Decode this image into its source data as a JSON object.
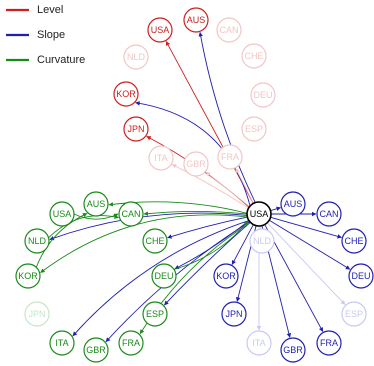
{
  "legend": [
    {
      "label": "Level",
      "color": "#cc1f1f"
    },
    {
      "label": "Slope",
      "color": "#1f1fb0"
    },
    {
      "label": "Curvature",
      "color": "#1a8a1a"
    }
  ],
  "colors": {
    "level": "#cc1f1f",
    "level_faded": "#f2c6c6",
    "slope": "#1f1fb0",
    "slope_faded": "#c9c9f0",
    "curvature": "#1a8a1a",
    "curvature_faded": "#c8e6c8",
    "hub": "#000000"
  },
  "hub": {
    "id": "hub",
    "label": "USA"
  },
  "nodes": [
    {
      "id": "L_USA",
      "label": "USA",
      "group": "level",
      "faded": false
    },
    {
      "id": "L_AUS",
      "label": "AUS",
      "group": "level",
      "faded": false
    },
    {
      "id": "L_CAN",
      "label": "CAN",
      "group": "level",
      "faded": true
    },
    {
      "id": "L_NLD",
      "label": "NLD",
      "group": "level",
      "faded": true
    },
    {
      "id": "L_CHE",
      "label": "CHE",
      "group": "level",
      "faded": true
    },
    {
      "id": "L_DEU",
      "label": "DEU",
      "group": "level",
      "faded": true
    },
    {
      "id": "L_KOR",
      "label": "KOR",
      "group": "level",
      "faded": false
    },
    {
      "id": "L_ESP",
      "label": "ESP",
      "group": "level",
      "faded": true
    },
    {
      "id": "L_JPN",
      "label": "JPN",
      "group": "level",
      "faded": false
    },
    {
      "id": "L_ITA",
      "label": "ITA",
      "group": "level",
      "faded": true
    },
    {
      "id": "L_GBR",
      "label": "GBR",
      "group": "level",
      "faded": true
    },
    {
      "id": "L_FRA",
      "label": "FRA",
      "group": "level",
      "faded": true
    },
    {
      "id": "S_AUS",
      "label": "AUS",
      "group": "slope",
      "faded": false
    },
    {
      "id": "S_CAN",
      "label": "CAN",
      "group": "slope",
      "faded": false
    },
    {
      "id": "S_CHE",
      "label": "CHE",
      "group": "slope",
      "faded": false
    },
    {
      "id": "S_NLD",
      "label": "NLD",
      "group": "slope",
      "faded": true
    },
    {
      "id": "S_DEU",
      "label": "DEU",
      "group": "slope",
      "faded": false
    },
    {
      "id": "S_KOR",
      "label": "KOR",
      "group": "slope",
      "faded": false
    },
    {
      "id": "S_ESP",
      "label": "ESP",
      "group": "slope",
      "faded": true
    },
    {
      "id": "S_JPN",
      "label": "JPN",
      "group": "slope",
      "faded": false
    },
    {
      "id": "S_ITA",
      "label": "ITA",
      "group": "slope",
      "faded": true
    },
    {
      "id": "S_GBR",
      "label": "GBR",
      "group": "slope",
      "faded": false
    },
    {
      "id": "S_FRA",
      "label": "FRA",
      "group": "slope",
      "faded": false
    },
    {
      "id": "C_AUS",
      "label": "AUS",
      "group": "curvature",
      "faded": false
    },
    {
      "id": "C_USA",
      "label": "USA",
      "group": "curvature",
      "faded": false
    },
    {
      "id": "C_CAN",
      "label": "CAN",
      "group": "curvature",
      "faded": false
    },
    {
      "id": "C_NLD",
      "label": "NLD",
      "group": "curvature",
      "faded": false
    },
    {
      "id": "C_CHE",
      "label": "CHE",
      "group": "curvature",
      "faded": false
    },
    {
      "id": "C_KOR",
      "label": "KOR",
      "group": "curvature",
      "faded": false
    },
    {
      "id": "C_DEU",
      "label": "DEU",
      "group": "curvature",
      "faded": false
    },
    {
      "id": "C_JPN",
      "label": "JPN",
      "group": "curvature",
      "faded": true
    },
    {
      "id": "C_ESP",
      "label": "ESP",
      "group": "curvature",
      "faded": false
    },
    {
      "id": "C_ITA",
      "label": "ITA",
      "group": "curvature",
      "faded": false
    },
    {
      "id": "C_GBR",
      "label": "GBR",
      "group": "curvature",
      "faded": false
    },
    {
      "id": "C_FRA",
      "label": "FRA",
      "group": "curvature",
      "faded": false
    }
  ],
  "edges": [
    {
      "from": "hub",
      "to": "L_USA",
      "type": "level",
      "faded": false
    },
    {
      "from": "hub",
      "to": "L_AUS",
      "type": "slope",
      "faded": false
    },
    {
      "from": "hub",
      "to": "L_KOR",
      "type": "slope",
      "faded": false
    },
    {
      "from": "hub",
      "to": "L_JPN",
      "type": "level",
      "faded": false
    },
    {
      "from": "hub",
      "to": "L_ITA",
      "type": "level",
      "faded": true
    },
    {
      "from": "hub",
      "to": "L_GBR",
      "type": "level",
      "faded": true
    },
    {
      "from": "hub",
      "to": "L_FRA",
      "type": "level",
      "faded": true
    },
    {
      "from": "hub",
      "to": "S_AUS",
      "type": "slope",
      "faded": false
    },
    {
      "from": "hub",
      "to": "S_CAN",
      "type": "slope",
      "faded": false
    },
    {
      "from": "hub",
      "to": "S_CHE",
      "type": "slope",
      "faded": false
    },
    {
      "from": "hub",
      "to": "S_DEU",
      "type": "slope",
      "faded": false
    },
    {
      "from": "hub",
      "to": "S_KOR",
      "type": "slope",
      "faded": false
    },
    {
      "from": "hub",
      "to": "S_JPN",
      "type": "slope",
      "faded": false
    },
    {
      "from": "hub",
      "to": "S_GBR",
      "type": "slope",
      "faded": false
    },
    {
      "from": "hub",
      "to": "S_FRA",
      "type": "slope",
      "faded": false
    },
    {
      "from": "hub",
      "to": "S_ITA",
      "type": "slope",
      "faded": true
    },
    {
      "from": "hub",
      "to": "S_ESP",
      "type": "slope",
      "faded": true
    },
    {
      "from": "hub",
      "to": "S_NLD",
      "type": "slope",
      "faded": true
    },
    {
      "from": "hub",
      "to": "C_CAN",
      "type": "curvature",
      "faded": false
    },
    {
      "from": "hub",
      "to": "C_AUS",
      "type": "curvature",
      "faded": false
    },
    {
      "from": "hub",
      "to": "C_CHE",
      "type": "slope",
      "faded": false
    },
    {
      "from": "hub",
      "to": "C_NLD",
      "type": "slope",
      "faded": false
    },
    {
      "from": "hub",
      "to": "C_DEU",
      "type": "slope",
      "faded": false
    },
    {
      "from": "hub",
      "to": "C_ESP",
      "type": "slope",
      "faded": false
    },
    {
      "from": "hub",
      "to": "C_ITA",
      "type": "slope",
      "faded": false
    },
    {
      "from": "hub",
      "to": "C_GBR",
      "type": "slope",
      "faded": false
    },
    {
      "from": "hub",
      "to": "C_FRA",
      "type": "curvature",
      "faded": false
    },
    {
      "from": "hub",
      "to": "C_KOR",
      "type": "curvature",
      "faded": false
    },
    {
      "from": "C_USA",
      "to": "C_CAN",
      "type": "curvature",
      "faded": false
    },
    {
      "from": "C_NLD",
      "to": "C_CAN",
      "type": "curvature",
      "faded": false
    },
    {
      "from": "C_KOR",
      "to": "C_AUS",
      "type": "curvature",
      "faded": false
    },
    {
      "from": "C_DEU",
      "to": "hub",
      "type": "curvature",
      "faded": false
    }
  ]
}
